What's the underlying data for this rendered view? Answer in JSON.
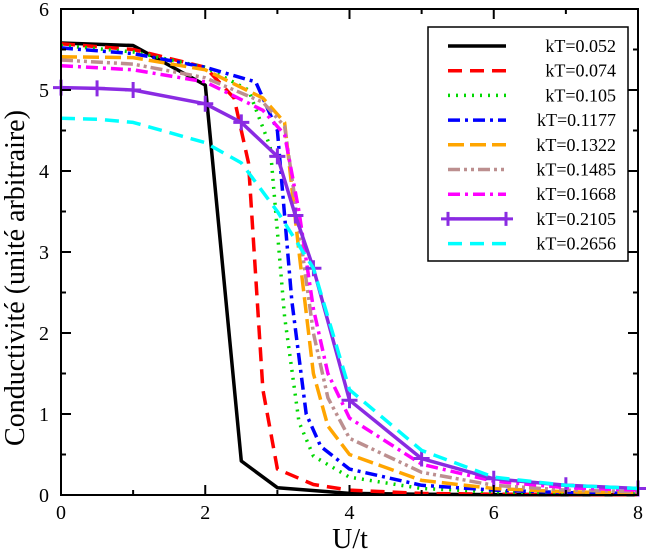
{
  "chart_data": {
    "type": "line",
    "title": "",
    "xlabel": "U/t",
    "ylabel": "Conductivité (unité arbitraire)",
    "xlim": [
      0,
      8
    ],
    "ylim": [
      0,
      6
    ],
    "xticks": [
      0,
      2,
      4,
      6,
      8
    ],
    "yticks": [
      0,
      1,
      2,
      3,
      4,
      5,
      6
    ],
    "grid": false,
    "legend_position": "top-right",
    "series": [
      {
        "name": "kT=0.052",
        "color": "#000000",
        "dash": "solid",
        "marker": "none",
        "x": [
          0,
          1,
          2,
          2.5,
          3,
          4,
          5,
          6,
          7,
          8
        ],
        "y": [
          5.58,
          5.55,
          5.06,
          0.42,
          0.09,
          0.02,
          0.01,
          0.005,
          0.003,
          0.002
        ]
      },
      {
        "name": "kT=0.074",
        "color": "#ff0000",
        "dash": "long",
        "marker": "none",
        "x": [
          0,
          1,
          2,
          2.4,
          2.6,
          2.8,
          3.0,
          3.5,
          4,
          5,
          6,
          7,
          8
        ],
        "y": [
          5.57,
          5.5,
          5.28,
          4.9,
          4.1,
          1.3,
          0.32,
          0.13,
          0.06,
          0.02,
          0.01,
          0.006,
          0.004
        ]
      },
      {
        "name": "kT=0.105",
        "color": "#00d800",
        "dash": "dot",
        "marker": "none",
        "x": [
          0,
          1,
          2,
          2.6,
          2.9,
          3.1,
          3.3,
          3.5,
          4,
          5,
          6,
          7,
          8
        ],
        "y": [
          5.55,
          5.47,
          5.28,
          5.0,
          4.3,
          2.2,
          0.9,
          0.48,
          0.22,
          0.08,
          0.04,
          0.02,
          0.012
        ]
      },
      {
        "name": "kT=0.1177",
        "color": "#0000ff",
        "dash": "dashdot",
        "marker": "none",
        "x": [
          0,
          1,
          2,
          2.7,
          3.0,
          3.2,
          3.4,
          3.6,
          4,
          5,
          6,
          7,
          8
        ],
        "y": [
          5.52,
          5.45,
          5.28,
          5.1,
          4.5,
          2.4,
          1.0,
          0.6,
          0.32,
          0.12,
          0.06,
          0.03,
          0.02
        ]
      },
      {
        "name": "kT=0.1322",
        "color": "#ffa500",
        "dash": "longdash",
        "marker": "none",
        "x": [
          0,
          1,
          2,
          2.8,
          3.1,
          3.3,
          3.5,
          3.7,
          4,
          5,
          6,
          7,
          8
        ],
        "y": [
          5.41,
          5.4,
          5.25,
          4.9,
          4.6,
          3.0,
          1.5,
          0.85,
          0.5,
          0.18,
          0.08,
          0.04,
          0.025
        ]
      },
      {
        "name": "kT=0.1485",
        "color": "#bc8f8f",
        "dash": "dashdotdot",
        "marker": "none",
        "x": [
          0,
          1,
          2,
          2.8,
          3.1,
          3.3,
          3.5,
          3.7,
          4,
          5,
          6,
          7,
          8
        ],
        "y": [
          5.37,
          5.32,
          5.15,
          4.85,
          4.55,
          3.3,
          2.0,
          1.2,
          0.7,
          0.28,
          0.12,
          0.06,
          0.04
        ]
      },
      {
        "name": "kT=0.1668",
        "color": "#ff00ff",
        "dash": "dashdot",
        "marker": "none",
        "x": [
          0,
          1,
          2,
          2.8,
          3.1,
          3.3,
          3.5,
          3.7,
          4,
          5,
          6,
          7,
          8
        ],
        "y": [
          5.3,
          5.25,
          5.1,
          4.75,
          4.45,
          3.5,
          2.3,
          1.5,
          0.95,
          0.38,
          0.17,
          0.09,
          0.06
        ]
      },
      {
        "name": "kT=0.2105",
        "color": "#8a2be2",
        "dash": "solid",
        "marker": "plus",
        "x": [
          0,
          0.5,
          1,
          2,
          2.5,
          3,
          3.25,
          3.5,
          4,
          5,
          6,
          7,
          8
        ],
        "y": [
          5.03,
          5.02,
          5.0,
          4.83,
          4.6,
          4.18,
          3.45,
          2.8,
          1.17,
          0.45,
          0.2,
          0.12,
          0.08
        ]
      },
      {
        "name": "kT=0.2656",
        "color": "#00ffff",
        "dash": "long",
        "marker": "none",
        "x": [
          0,
          0.5,
          1,
          2,
          2.5,
          3,
          3.5,
          4,
          5,
          6,
          7,
          8
        ],
        "y": [
          4.65,
          4.64,
          4.6,
          4.35,
          4.1,
          3.5,
          2.8,
          1.3,
          0.55,
          0.22,
          0.12,
          0.08
        ]
      }
    ]
  }
}
